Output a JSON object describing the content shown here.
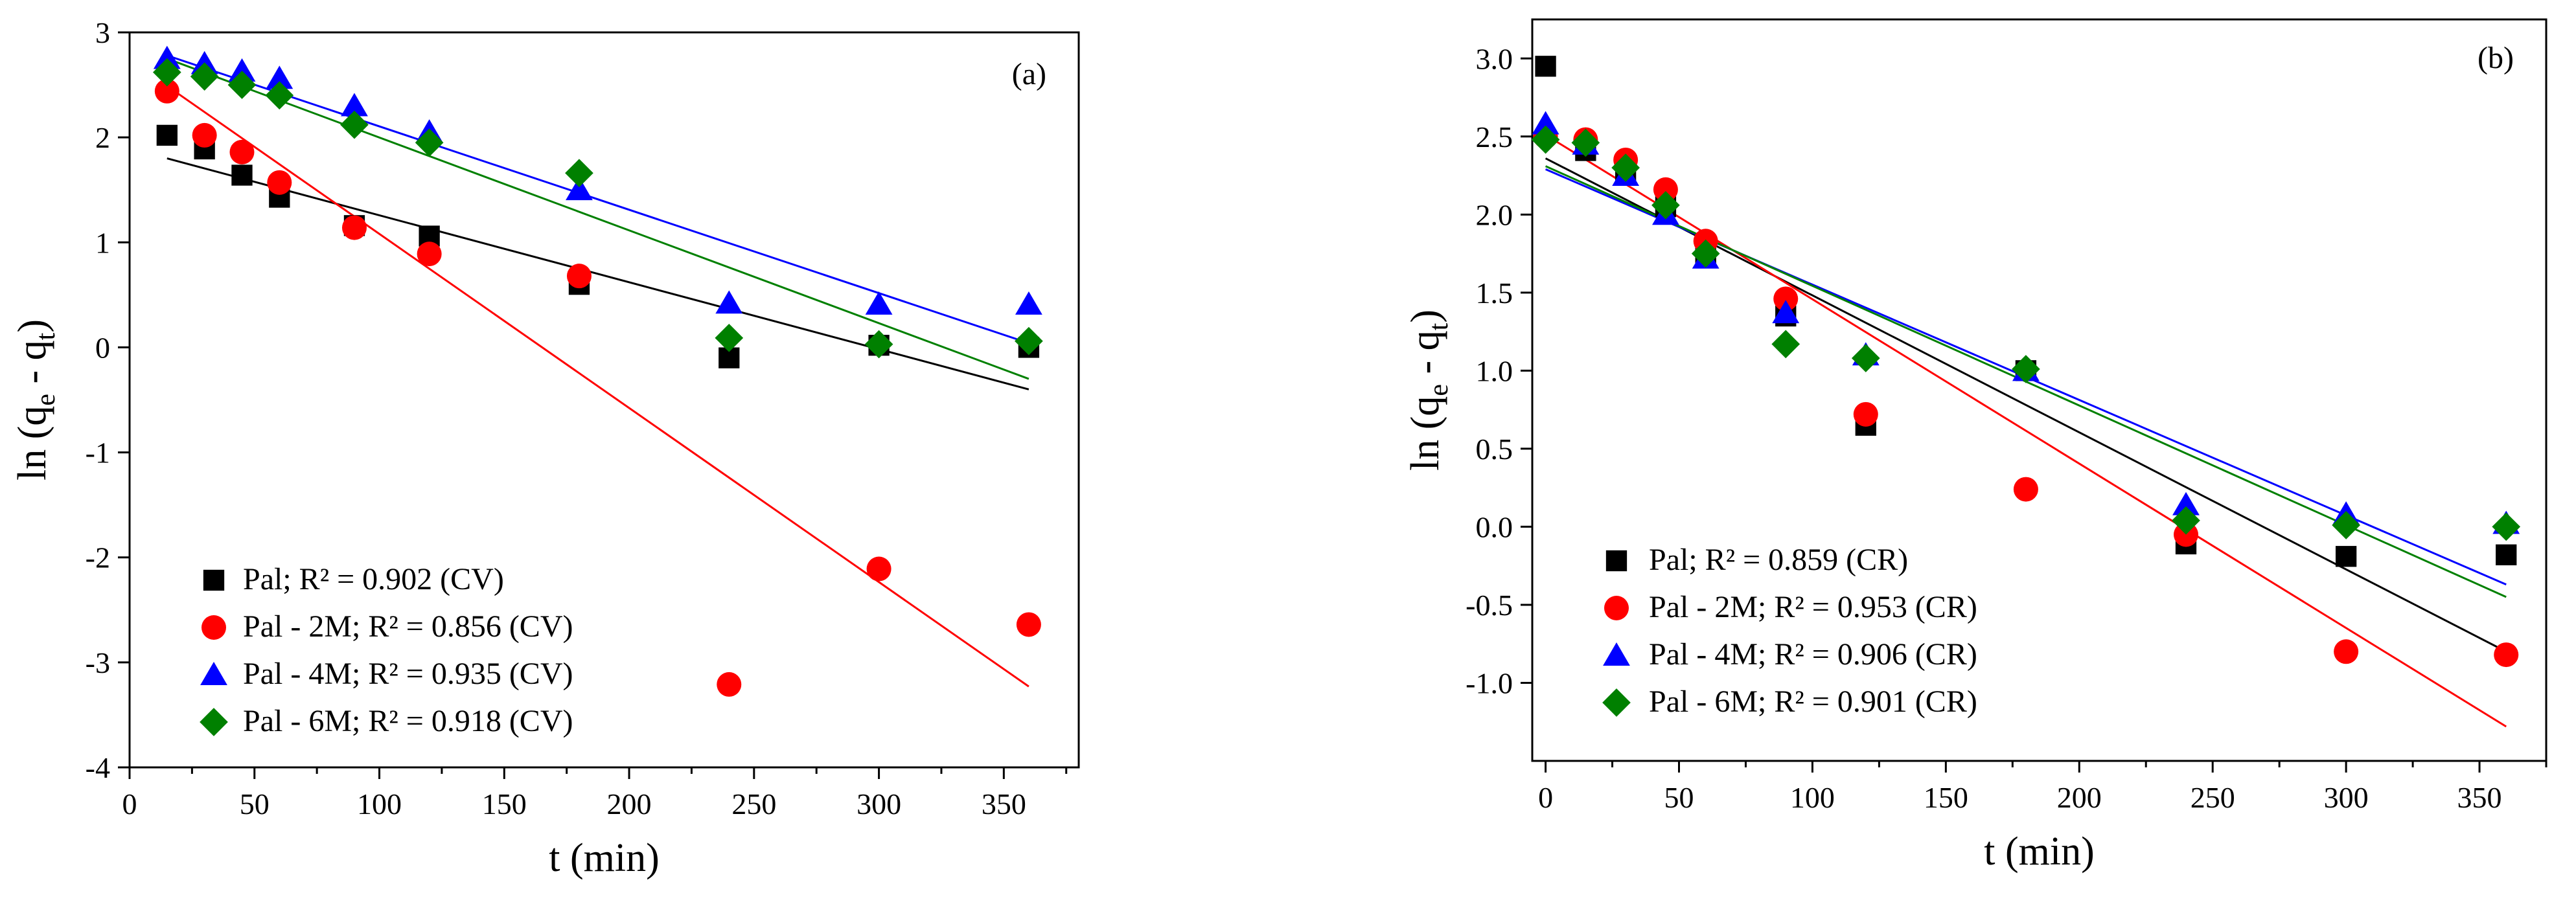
{
  "chart_data": [
    {
      "type": "scatter",
      "panel_label": "(a)",
      "xlabel": "t (min)",
      "ylabel": "ln (q_e - q_t)",
      "ylabel_parts": {
        "pre": "ln (q",
        "sub1": "e",
        "mid": " - q",
        "sub2": "t",
        "post": ")"
      },
      "xlim": [
        0,
        380
      ],
      "ylim": [
        -4,
        3
      ],
      "x_ticks": [
        "0",
        "50",
        "100",
        "150",
        "200",
        "250",
        "300",
        "350"
      ],
      "y_ticks": [
        "-4",
        "-3",
        "-2",
        "-1",
        "0",
        "1",
        "2",
        "3"
      ],
      "legend_position": "bottom-left",
      "grid": false,
      "series": [
        {
          "name": "Pal; R² = 0.902 (CV)",
          "marker": "square",
          "color": "#000000",
          "x": [
            15,
            30,
            45,
            60,
            90,
            120,
            180,
            240,
            300,
            360
          ],
          "y": [
            2.02,
            1.89,
            1.64,
            1.43,
            1.16,
            1.06,
            0.6,
            -0.1,
            0.02,
            0.0
          ],
          "fit": {
            "x": [
              15,
              360
            ],
            "y": [
              1.8,
              -0.4
            ]
          }
        },
        {
          "name": "Pal - 2M; R² = 0.856 (CV)",
          "marker": "circle",
          "color": "#ff0000",
          "x": [
            15,
            30,
            45,
            60,
            90,
            120,
            180,
            240,
            300,
            360
          ],
          "y": [
            2.44,
            2.02,
            1.86,
            1.57,
            1.14,
            0.89,
            0.68,
            -3.21,
            -2.11,
            -2.64
          ],
          "fit": {
            "x": [
              15,
              360
            ],
            "y": [
              2.49,
              -3.23
            ]
          }
        },
        {
          "name": "Pal - 4M; R² = 0.935 (CV)",
          "marker": "triangle",
          "color": "#0000ff",
          "x": [
            15,
            30,
            45,
            60,
            90,
            120,
            180,
            240,
            300,
            360
          ],
          "y": [
            2.75,
            2.7,
            2.63,
            2.56,
            2.3,
            2.05,
            1.5,
            0.42,
            0.41,
            0.41
          ],
          "fit": {
            "x": [
              15,
              360
            ],
            "y": [
              2.78,
              0.04
            ]
          }
        },
        {
          "name": "Pal - 6M; R² = 0.918 (CV)",
          "marker": "diamond",
          "color": "#008000",
          "x": [
            15,
            30,
            45,
            60,
            90,
            120,
            180,
            240,
            300,
            360
          ],
          "y": [
            2.62,
            2.58,
            2.5,
            2.4,
            2.12,
            1.95,
            1.66,
            0.09,
            0.03,
            0.06
          ],
          "fit": {
            "x": [
              15,
              360
            ],
            "y": [
              2.75,
              -0.3
            ]
          }
        }
      ]
    },
    {
      "type": "scatter",
      "panel_label": "(b)",
      "xlabel": "t (min)",
      "ylabel": "ln (q_e - q_t)",
      "ylabel_parts": {
        "pre": "ln (q",
        "sub1": "e",
        "mid": " - q",
        "sub2": "t",
        "post": ")"
      },
      "xlim": [
        -5,
        375
      ],
      "ylim": [
        -1.5,
        3.25
      ],
      "x_ticks": [
        "0",
        "50",
        "100",
        "150",
        "200",
        "250",
        "300",
        "350"
      ],
      "y_ticks": [
        "-1.0",
        "-0.5",
        "0.0",
        "0.5",
        "1.0",
        "1.5",
        "2.0",
        "2.5",
        "3.0"
      ],
      "legend_position": "bottom-left",
      "grid": false,
      "series": [
        {
          "name": "Pal; R² = 0.859 (CR)",
          "marker": "square",
          "color": "#000000",
          "x": [
            0,
            15,
            30,
            45,
            60,
            90,
            120,
            180,
            240,
            300,
            360
          ],
          "y": [
            2.95,
            2.41,
            2.27,
            2.05,
            1.75,
            1.35,
            0.65,
            1.0,
            -0.11,
            -0.19,
            -0.18
          ],
          "fit": {
            "x": [
              0,
              360
            ],
            "y": [
              2.36,
              -0.8
            ]
          }
        },
        {
          "name": "Pal - 2M; R² = 0.953 (CR)",
          "marker": "circle",
          "color": "#ff0000",
          "x": [
            0,
            15,
            30,
            45,
            60,
            90,
            120,
            180,
            240,
            300,
            360
          ],
          "y": [
            2.5,
            2.48,
            2.35,
            2.16,
            1.83,
            1.46,
            0.72,
            0.24,
            -0.05,
            -0.8,
            -0.82
          ],
          "fit": {
            "x": [
              0,
              360
            ],
            "y": [
              2.51,
              -1.28
            ]
          }
        },
        {
          "name": "Pal - 4M; R² = 0.906 (CR)",
          "marker": "triangle",
          "color": "#0000ff",
          "x": [
            0,
            15,
            30,
            45,
            60,
            90,
            120,
            180,
            240,
            300,
            360
          ],
          "y": [
            2.58,
            2.45,
            2.25,
            2.0,
            1.72,
            1.37,
            1.1,
            1.0,
            0.14,
            0.08,
            0.02
          ],
          "fit": {
            "x": [
              0,
              360
            ],
            "y": [
              2.29,
              -0.37
            ]
          }
        },
        {
          "name": "Pal - 6M; R² = 0.901 (CR)",
          "marker": "diamond",
          "color": "#008000",
          "x": [
            0,
            15,
            30,
            45,
            60,
            90,
            120,
            180,
            240,
            300,
            360
          ],
          "y": [
            2.48,
            2.46,
            2.3,
            2.06,
            1.75,
            1.17,
            1.08,
            1.01,
            0.04,
            0.01,
            0.0
          ],
          "fit": {
            "x": [
              0,
              360
            ],
            "y": [
              2.31,
              -0.45
            ]
          }
        }
      ]
    }
  ]
}
